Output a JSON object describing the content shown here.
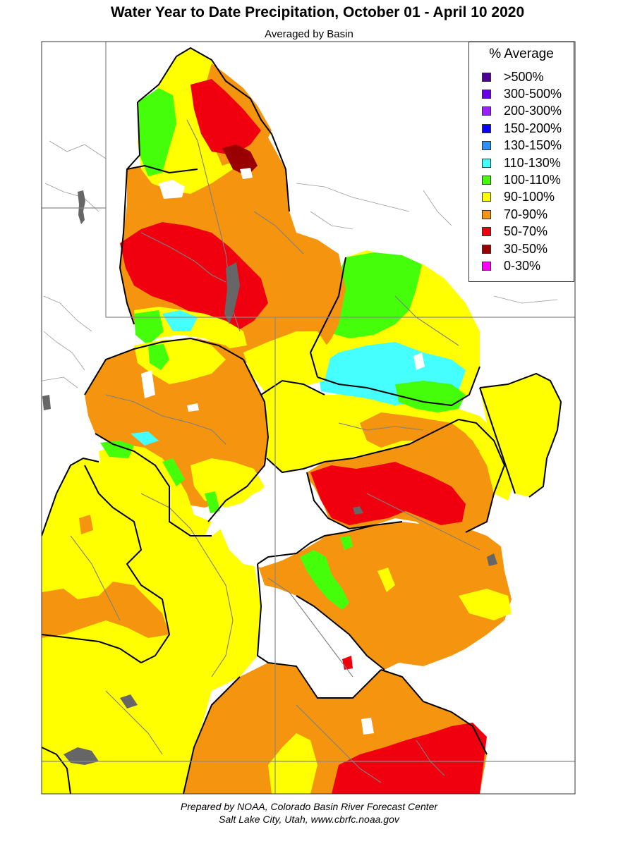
{
  "map": {
    "title": "Water Year to Date Precipitation, October 01  - April 10 2020",
    "subtitle": "Averaged by Basin"
  },
  "legend": {
    "title": "% Average",
    "items": [
      {
        "label": ">500%",
        "color": "#4b0096"
      },
      {
        "label": "300-500%",
        "color": "#6a00e6"
      },
      {
        "label": "200-300%",
        "color": "#9b1fff"
      },
      {
        "label": "150-200%",
        "color": "#0a00ff"
      },
      {
        "label": "130-150%",
        "color": "#2f8ff6"
      },
      {
        "label": "110-130%",
        "color": "#45ffff"
      },
      {
        "label": "100-110%",
        "color": "#45ff0a"
      },
      {
        "label": "90-100%",
        "color": "#ffff00"
      },
      {
        "label": "70-90%",
        "color": "#f5940f"
      },
      {
        "label": "50-70%",
        "color": "#f0000f"
      },
      {
        "label": "30-50%",
        "color": "#9b0000"
      },
      {
        "label": "0-30%",
        "color": "#ff00ff"
      }
    ]
  },
  "credit": {
    "line1": "Prepared by NOAA, Colorado Basin River Forecast Center",
    "line2": "Salt Lake City, Utah, www.cbrfc.noaa.gov"
  }
}
